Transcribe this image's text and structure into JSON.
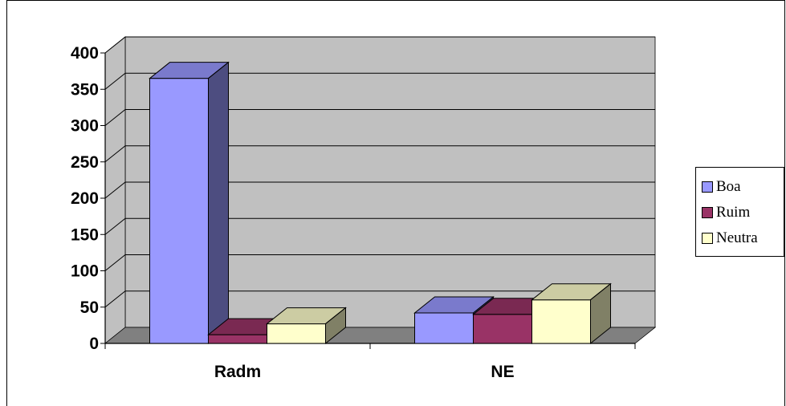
{
  "chart_data": {
    "type": "bar",
    "categories": [
      "Radm",
      "NE"
    ],
    "series": [
      {
        "name": "Boa",
        "values": [
          365,
          42
        ]
      },
      {
        "name": "Ruim",
        "values": [
          12,
          40
        ]
      },
      {
        "name": "Neutra",
        "values": [
          27,
          60
        ]
      }
    ],
    "ylim": [
      0,
      400
    ],
    "yticks": [
      0,
      50,
      100,
      150,
      200,
      250,
      300,
      350,
      400
    ],
    "grid": true,
    "legend": "right",
    "colors": {
      "Boa": "#9999ff",
      "Ruim": "#993366",
      "Neutra": "#ffffcc",
      "wall": "#c0c0c0",
      "floor": "#808080"
    }
  }
}
